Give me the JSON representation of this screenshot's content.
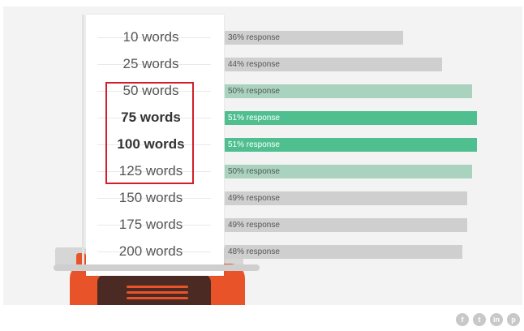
{
  "chart_data": {
    "type": "bar",
    "orientation": "horizontal",
    "categories": [
      "10 words",
      "25 words",
      "50 words",
      "75 words",
      "100 words",
      "125 words",
      "150 words",
      "175 words",
      "200 words"
    ],
    "values": [
      36,
      44,
      50,
      51,
      51,
      50,
      49,
      49,
      48
    ],
    "value_labels": [
      "36% response",
      "44% response",
      "50% response",
      "51% response",
      "51% response",
      "50% response",
      "49% response",
      "49% response",
      "48% response"
    ],
    "bold_categories": [
      "75 words",
      "100 words"
    ],
    "highlighted_categories": [
      "50 words",
      "75 words",
      "100 words",
      "125 words"
    ],
    "bar_colors": [
      "#cfcfcf",
      "#cfcfcf",
      "#a9d3bf",
      "#4fbf90",
      "#4fbf90",
      "#a9d3bf",
      "#cfcfcf",
      "#cfcfcf",
      "#cfcfcf"
    ],
    "title": "",
    "xlabel": "",
    "ylabel": ""
  },
  "social_icons": [
    "facebook-icon",
    "twitter-icon",
    "linkedin-icon",
    "pinterest-icon"
  ]
}
